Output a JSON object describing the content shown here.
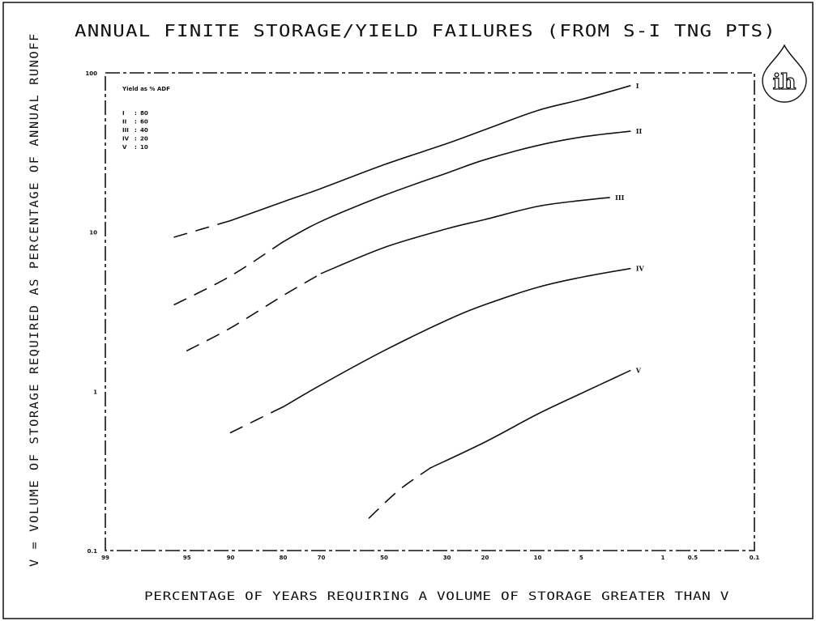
{
  "chart_data": {
    "type": "line",
    "title": "ANNUAL FINITE STORAGE/YIELD FAILURES (FROM S-I TNG PTS)",
    "xlabel": "PERCENTAGE OF YEARS REQUIRING A VOLUME OF STORAGE GREATER THAN V",
    "ylabel": "V = VOLUME OF STORAGE REQUIRED AS PERCENTAGE OF ANNUAL RUNOFF",
    "xscale": "normal-probability",
    "yscale": "log",
    "ylim": [
      0.1,
      100
    ],
    "x_ticks": [
      {
        "value": 99,
        "label": "99"
      },
      {
        "value": 95,
        "label": "95"
      },
      {
        "value": 90,
        "label": "90"
      },
      {
        "value": 80,
        "label": "80"
      },
      {
        "value": 70,
        "label": "70"
      },
      {
        "value": 50,
        "label": "50"
      },
      {
        "value": 30,
        "label": "30"
      },
      {
        "value": 20,
        "label": "20"
      },
      {
        "value": 10,
        "label": "10"
      },
      {
        "value": 5,
        "label": "5"
      },
      {
        "value": 1,
        "label": "1"
      },
      {
        "value": 0.5,
        "label": "0.5"
      },
      {
        "value": 0.1,
        "label": "0.1"
      }
    ],
    "y_ticks": [
      {
        "value": 100,
        "label": "100"
      },
      {
        "value": 10,
        "label": "10"
      },
      {
        "value": 1,
        "label": "1"
      },
      {
        "value": 0.1,
        "label": "0.1"
      }
    ],
    "legend": {
      "title": "Yield as % ADF",
      "position": "top-left",
      "entries": [
        {
          "code": "I",
          "sep": ":",
          "value": "80"
        },
        {
          "code": "II",
          "sep": ":",
          "value": "60"
        },
        {
          "code": "III",
          "sep": ":",
          "value": "40"
        },
        {
          "code": "IV",
          "sep": ":",
          "value": "20"
        },
        {
          "code": "V",
          "sep": ":",
          "value": "10"
        }
      ]
    },
    "series": [
      {
        "name": "I",
        "dashed_above_x": 90,
        "points": [
          [
            96,
            9.3
          ],
          [
            90,
            11.8
          ],
          [
            80,
            15.5
          ],
          [
            70,
            18.8
          ],
          [
            50,
            26.5
          ],
          [
            30,
            36
          ],
          [
            20,
            44
          ],
          [
            10,
            58
          ],
          [
            5,
            68
          ],
          [
            2,
            83
          ]
        ]
      },
      {
        "name": "II",
        "dashed_above_x": 80,
        "points": [
          [
            96,
            3.5
          ],
          [
            90,
            5.3
          ],
          [
            80,
            8.7
          ],
          [
            70,
            11.7
          ],
          [
            50,
            17
          ],
          [
            30,
            23.5
          ],
          [
            20,
            28.5
          ],
          [
            10,
            35
          ],
          [
            5,
            39.5
          ],
          [
            2,
            43
          ]
        ]
      },
      {
        "name": "III",
        "dashed_above_x": 75,
        "points": [
          [
            95,
            1.8
          ],
          [
            90,
            2.5
          ],
          [
            80,
            4.0
          ],
          [
            70,
            5.5
          ],
          [
            50,
            8.0
          ],
          [
            30,
            10.5
          ],
          [
            20,
            12.0
          ],
          [
            10,
            14.5
          ],
          [
            5,
            15.8
          ],
          [
            3,
            16.5
          ]
        ]
      },
      {
        "name": "IV",
        "dashed_above_x": 85,
        "points": [
          [
            90,
            0.55
          ],
          [
            80,
            0.8
          ],
          [
            70,
            1.1
          ],
          [
            50,
            1.8
          ],
          [
            30,
            2.8
          ],
          [
            20,
            3.5
          ],
          [
            10,
            4.5
          ],
          [
            5,
            5.2
          ],
          [
            2,
            5.9
          ]
        ]
      },
      {
        "name": "V",
        "dashed_above_x": 35,
        "points": [
          [
            55,
            0.16
          ],
          [
            45,
            0.24
          ],
          [
            35,
            0.33
          ],
          [
            20,
            0.48
          ],
          [
            10,
            0.72
          ],
          [
            5,
            0.97
          ],
          [
            2,
            1.35
          ]
        ]
      }
    ]
  }
}
